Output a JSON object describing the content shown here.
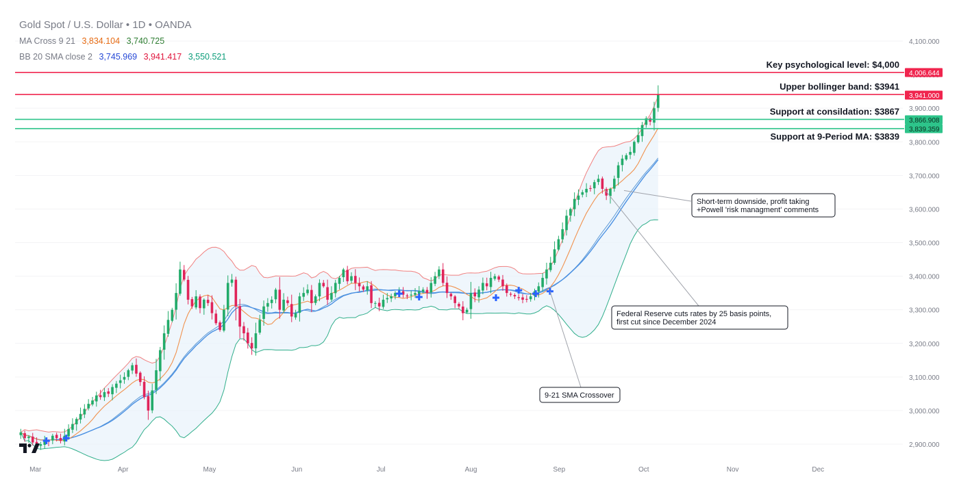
{
  "header": {
    "title": "Gold Spot / U.S. Dollar",
    "interval": "1D",
    "source": "OANDA",
    "dot": "•",
    "ma_label": "MA Cross 9 21",
    "ma_values": [
      "3,834.104",
      "3,740.725"
    ],
    "ma_colors": [
      "#e66a12",
      "#2e7d32"
    ],
    "bb_label": "BB 20 SMA close 2",
    "bb_values": [
      "3,745.969",
      "3,941.417",
      "3,550.521"
    ],
    "bb_colors": [
      "#2548d6",
      "#e0143c",
      "#0c9d7a"
    ]
  },
  "chart_data": {
    "type": "candlestick",
    "x_tick_labels": [
      "Mar",
      "Apr",
      "May",
      "Jun",
      "Jul",
      "Aug",
      "Sep",
      "Oct",
      "Nov",
      "Dec"
    ],
    "y_tick_labels": [
      "4,100.000",
      "4,000.000",
      "3,900.000",
      "3,800.000",
      "3,700.000",
      "3,600.000",
      "3,500.000",
      "3,400.000",
      "3,300.000",
      "3,200.000",
      "3,100.000",
      "3,000.000",
      "2,900.000"
    ],
    "y_ticks": [
      4100,
      4000,
      3900,
      3800,
      3700,
      3600,
      3500,
      3400,
      3300,
      3200,
      3100,
      3000,
      2900
    ],
    "ylim": [
      2860,
      4210
    ],
    "x_range": [
      "2025-02-22",
      "2025-12-31"
    ],
    "start_date": "2025-02-22",
    "closes": [
      2935,
      2918,
      2922,
      2905,
      2895,
      2900,
      2912,
      2908,
      2925,
      2918,
      2910,
      2925,
      2945,
      2960,
      2975,
      2990,
      3005,
      3020,
      3030,
      3045,
      3040,
      3055,
      3050,
      3070,
      3080,
      3090,
      3100,
      3120,
      3135,
      3110,
      3085,
      3040,
      3000,
      3060,
      3120,
      3180,
      3230,
      3270,
      3300,
      3350,
      3420,
      3390,
      3330,
      3310,
      3340,
      3305,
      3330,
      3320,
      3290,
      3260,
      3240,
      3300,
      3380,
      3390,
      3310,
      3250,
      3230,
      3200,
      3185,
      3230,
      3270,
      3310,
      3320,
      3330,
      3360,
      3300,
      3330,
      3320,
      3280,
      3290,
      3340,
      3350,
      3360,
      3320,
      3340,
      3380,
      3370,
      3330,
      3350,
      3380,
      3395,
      3420,
      3385,
      3400,
      3380,
      3370,
      3360,
      3370,
      3320,
      3320,
      3310,
      3330,
      3335,
      3340,
      3350,
      3355,
      3345,
      3340,
      3345,
      3350,
      3355,
      3360,
      3350,
      3380,
      3400,
      3420,
      3380,
      3350,
      3340,
      3320,
      3310,
      3290,
      3300,
      3350,
      3340,
      3360,
      3380,
      3370,
      3395,
      3400,
      3390,
      3370,
      3350,
      3345,
      3340,
      3335,
      3330,
      3330,
      3340,
      3355,
      3370,
      3395,
      3420,
      3440,
      3480,
      3510,
      3540,
      3580,
      3600,
      3630,
      3640,
      3650,
      3660,
      3660,
      3680,
      3690,
      3660,
      3640,
      3660,
      3690,
      3730,
      3750,
      3760,
      3770,
      3800,
      3820,
      3850,
      3870,
      3860,
      3900,
      3940
    ],
    "series": [
      {
        "name": "MA 9",
        "color": "#f0914d"
      },
      {
        "name": "MA 21",
        "color": "#4a90e2"
      },
      {
        "name": "BB basis",
        "color": "#5d9ad6"
      },
      {
        "name": "BB upper",
        "color": "#f08080"
      },
      {
        "name": "BB lower",
        "color": "#2fae8a"
      }
    ],
    "candle_up_color": "#22ab6a",
    "candle_down_color": "#e0245a",
    "crossovers": [
      {
        "date": "2025-03-05",
        "price": 2910
      },
      {
        "date": "2025-03-12",
        "price": 2918
      },
      {
        "date": "2025-07-07",
        "price": 3348
      },
      {
        "date": "2025-07-14",
        "price": 3338
      },
      {
        "date": "2025-08-10",
        "price": 3336
      },
      {
        "date": "2025-08-18",
        "price": 3358
      },
      {
        "date": "2025-08-24",
        "price": 3348
      },
      {
        "date": "2025-08-29",
        "price": 3355
      }
    ],
    "levels": [
      {
        "label": "Key psychological level: $4,000",
        "price": 4006.644,
        "price_label": "4,006.644",
        "color": "#f0254e"
      },
      {
        "label": "Upper bollinger band: $3941",
        "price": 3941.0,
        "price_label": "3,941.000",
        "color": "#f0254e"
      },
      {
        "label": "Support at consildation: $3867",
        "price": 3866.908,
        "price_label": "3,866.908",
        "color": "#2dc48a"
      },
      {
        "label": "Support at 9-Period MA: $3839",
        "price": 3839.359,
        "price_label": "3,839.359",
        "color": "#2dc48a"
      }
    ],
    "annotations": [
      {
        "lines": [
          "Short-term downside, profit taking",
          "+Powell 'risk managment' comments"
        ],
        "date": "2025-09-24",
        "price": 3655
      },
      {
        "lines": [
          "Federal Reserve cuts rates by 25 basis points,",
          "first cut since December 2024"
        ],
        "date": "2025-09-17",
        "price": 3660
      },
      {
        "lines": [
          "9-21 SMA Crossover"
        ],
        "date": "2025-08-29",
        "price": 3355
      }
    ]
  }
}
